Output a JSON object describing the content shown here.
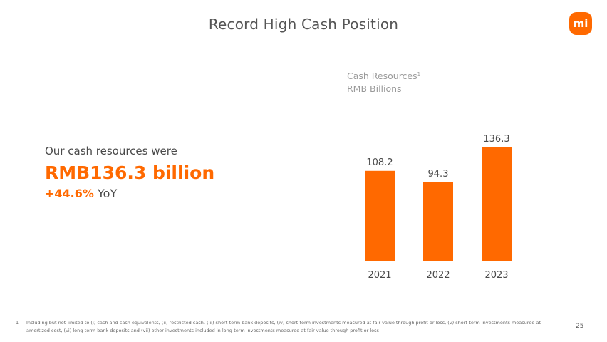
{
  "slide": {
    "title": "Record High Cash Position",
    "logo_text": "mi",
    "page_number": "25"
  },
  "headline": {
    "line1": "Our cash resources were",
    "line2": "RMB136.3 billion",
    "growth": "+44.6%",
    "growth_suffix": " YoY"
  },
  "chart_caption": {
    "title": "Cash Resources",
    "superscript": "1",
    "unit": "RMB Billions"
  },
  "footnote": {
    "mark": "1",
    "text": "Including but not limited to (i) cash and cash equivalents, (ii) restricted cash, (iii) short-term bank deposits, (iv) short-term investments measured at fair value through profit or loss, (v) short-term investments measured at amortized cost, (vi) long-term bank deposits and (vii) other investments included in long-term investments measured at fair value through profit or loss"
  },
  "colors": {
    "accent": "#ff6900",
    "text": "#4a4a4a",
    "muted": "#9a9a9a"
  },
  "chart_data": {
    "type": "bar",
    "title": "Cash Resources",
    "ylabel": "RMB Billions",
    "categories": [
      "2021",
      "2022",
      "2023"
    ],
    "values": [
      108.2,
      94.3,
      136.3
    ],
    "value_labels": [
      "108.2",
      "94.3",
      "136.3"
    ],
    "ylim": [
      0,
      136.3
    ],
    "grid": false,
    "legend": "none",
    "bar_color": "#ff6900"
  }
}
